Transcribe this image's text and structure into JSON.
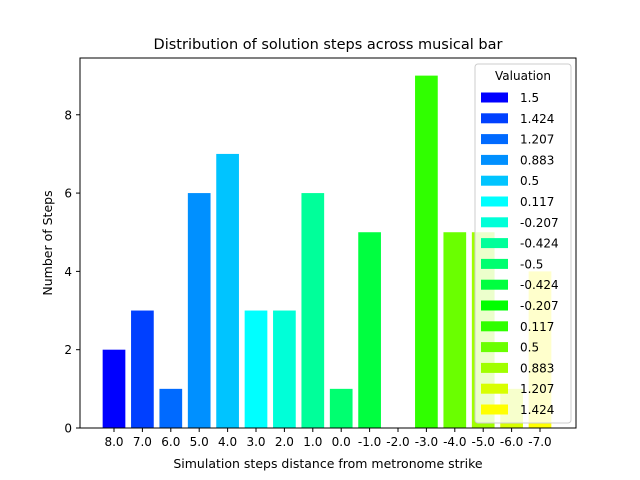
{
  "chart_data": {
    "type": "bar",
    "title": "Distribution of solution steps across musical bar",
    "xlabel": "Simulation steps distance from metronome strike",
    "ylabel": "Number of Steps",
    "ylim": [
      0,
      9.45
    ],
    "yticks": [
      0,
      2,
      4,
      6,
      8
    ],
    "categories": [
      "8.0",
      "7.0",
      "6.0",
      "5.0",
      "4.0",
      "3.0",
      "2.0",
      "1.0",
      "0.0",
      "-1.0",
      "-2.0",
      "-3.0",
      "-4.0",
      "-5.0",
      "-6.0",
      "-7.0"
    ],
    "values": [
      2,
      3,
      1,
      6,
      7,
      3,
      3,
      6,
      1,
      5,
      0,
      9,
      5,
      5,
      1,
      4
    ],
    "colors": [
      "#0000ff",
      "#0040ff",
      "#006aff",
      "#0090ff",
      "#00c4ff",
      "#00ffff",
      "#00ffd8",
      "#00ff9a",
      "#00ff70",
      "#00ff40",
      "#00ff00",
      "#30ff00",
      "#6aff00",
      "#a0ff00",
      "#d8ff00",
      "#ffff00"
    ],
    "legend": {
      "title": "Valuation",
      "placement": "top-right",
      "entries": [
        "1.5",
        "1.424",
        "1.207",
        "0.883",
        "0.5",
        "0.117",
        "-0.207",
        "-0.424",
        "-0.5",
        "-0.424",
        "-0.207",
        "0.117",
        "0.5",
        "0.883",
        "1.207",
        "1.424"
      ]
    },
    "grid": false
  }
}
